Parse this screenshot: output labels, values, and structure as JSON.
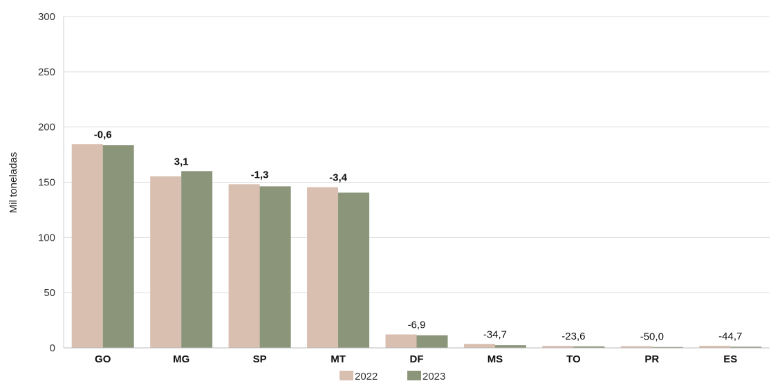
{
  "chart_data": {
    "type": "bar",
    "categories": [
      "GO",
      "MG",
      "SP",
      "MT",
      "DF",
      "MS",
      "TO",
      "PR",
      "ES"
    ],
    "series": [
      {
        "name": "2022",
        "color": "#d9bfb0",
        "values": [
          184.6,
          155.3,
          148.2,
          145.5,
          12.2,
          3.6,
          1.8,
          1.6,
          1.9
        ]
      },
      {
        "name": "2023",
        "color": "#8a957a",
        "values": [
          183.5,
          160.1,
          146.3,
          140.6,
          11.4,
          2.4,
          1.4,
          0.8,
          1.05
        ]
      }
    ],
    "annotations": [
      "-0,6",
      "3,1",
      "-1,3",
      "-3,4",
      "-6,9",
      "-34,7",
      "-23,6",
      "-50,0",
      "-44,7"
    ],
    "annotations_bold": [
      true,
      true,
      true,
      true,
      false,
      false,
      false,
      false,
      false
    ],
    "title": "",
    "xlabel": "",
    "ylabel": "Mil toneladas",
    "ylim": [
      0,
      300
    ],
    "yticks": [
      0,
      50,
      100,
      150,
      200,
      250,
      300
    ],
    "grid": true,
    "legend_position": "bottom-center"
  }
}
